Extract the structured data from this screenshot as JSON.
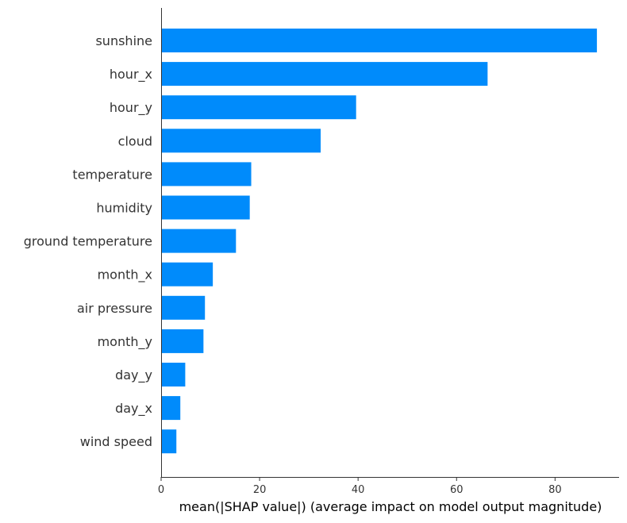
{
  "chart_data": {
    "type": "bar",
    "orientation": "horizontal",
    "categories": [
      "sunshine",
      "hour_x",
      "hour_y",
      "cloud",
      "temperature",
      "humidity",
      "ground temperature",
      "month_x",
      "air pressure",
      "month_y",
      "day_y",
      "day_x",
      "wind speed"
    ],
    "values": [
      88.5,
      66.3,
      39.6,
      32.4,
      18.3,
      18.0,
      15.2,
      10.5,
      8.9,
      8.6,
      4.9,
      3.9,
      3.1
    ],
    "xlabel": "mean(|SHAP value|) (average impact on model output magnitude)",
    "ylabel": "",
    "title": "",
    "xlim": [
      0,
      93
    ],
    "xticks": [
      0,
      20,
      40,
      60,
      80
    ],
    "grid": false,
    "bar_color": "#008bfb",
    "axis_color": "#333333"
  }
}
